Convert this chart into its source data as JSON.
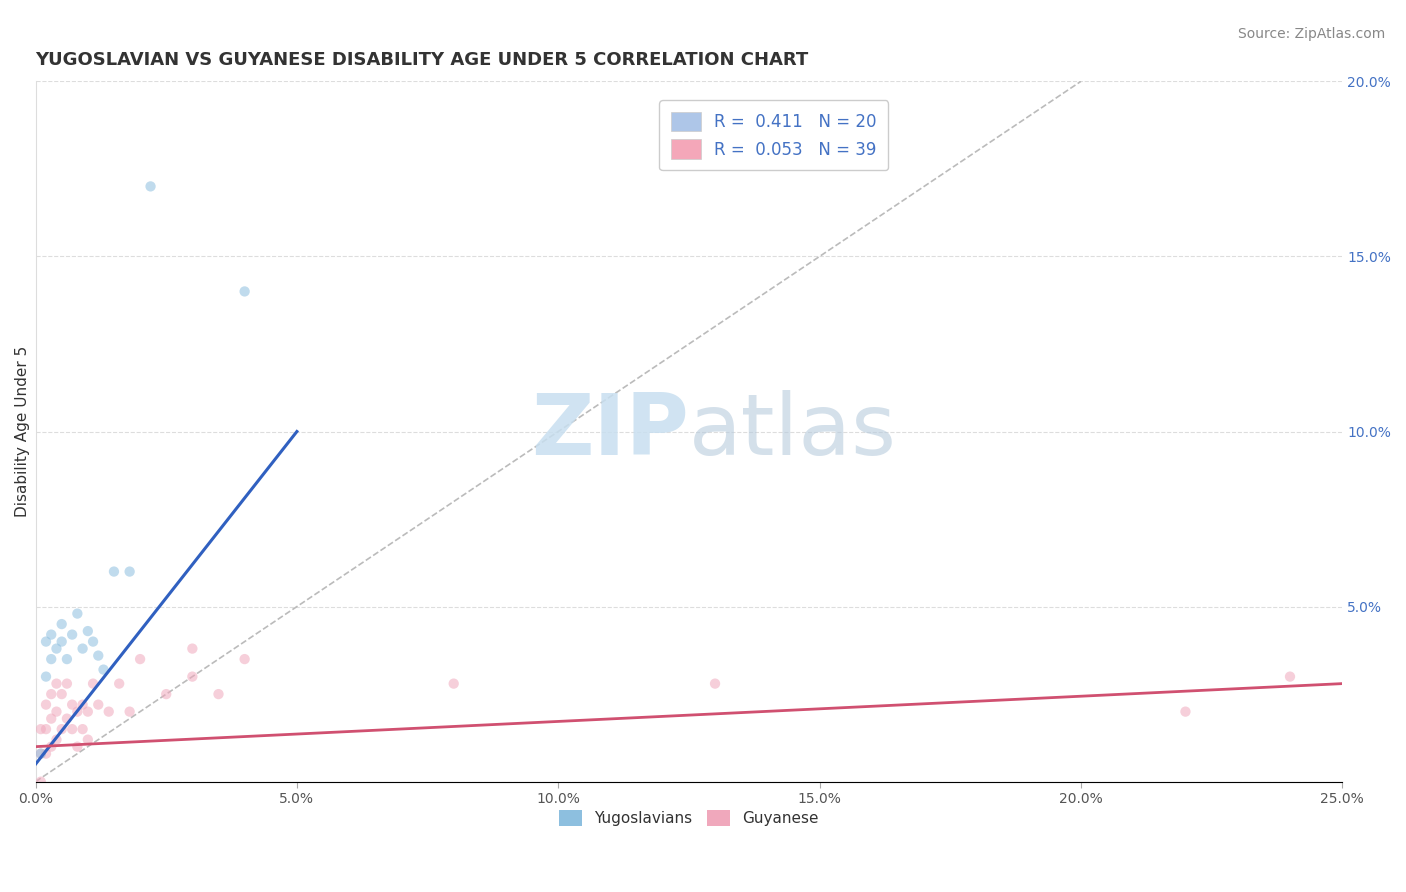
{
  "title": "YUGOSLAVIAN VS GUYANESE DISABILITY AGE UNDER 5 CORRELATION CHART",
  "source": "Source: ZipAtlas.com",
  "ylabel": "Disability Age Under 5",
  "xlim": [
    0.0,
    0.25
  ],
  "ylim": [
    0.0,
    0.2
  ],
  "xticks": [
    0.0,
    0.05,
    0.1,
    0.15,
    0.2,
    0.25
  ],
  "xticklabels": [
    "0.0%",
    "5.0%",
    "10.0%",
    "15.0%",
    "20.0%",
    "25.0%"
  ],
  "yticks": [
    0.0,
    0.05,
    0.1,
    0.15,
    0.2
  ],
  "yticklabels_right": [
    "",
    "5.0%",
    "10.0%",
    "15.0%",
    "20.0%"
  ],
  "watermark_top": "ZIP",
  "watermark_bottom": "atlas",
  "blue_scatter_x": [
    0.001,
    0.002,
    0.002,
    0.003,
    0.003,
    0.004,
    0.005,
    0.005,
    0.006,
    0.007,
    0.008,
    0.009,
    0.01,
    0.011,
    0.012,
    0.013,
    0.015,
    0.018,
    0.022,
    0.04
  ],
  "blue_scatter_y": [
    0.008,
    0.03,
    0.04,
    0.035,
    0.042,
    0.038,
    0.04,
    0.045,
    0.035,
    0.042,
    0.048,
    0.038,
    0.043,
    0.04,
    0.036,
    0.032,
    0.06,
    0.06,
    0.17,
    0.14
  ],
  "pink_scatter_x": [
    0.001,
    0.001,
    0.001,
    0.002,
    0.002,
    0.002,
    0.003,
    0.003,
    0.003,
    0.004,
    0.004,
    0.004,
    0.005,
    0.005,
    0.006,
    0.006,
    0.007,
    0.007,
    0.008,
    0.008,
    0.009,
    0.009,
    0.01,
    0.01,
    0.011,
    0.012,
    0.014,
    0.016,
    0.018,
    0.02,
    0.025,
    0.03,
    0.03,
    0.035,
    0.04,
    0.08,
    0.13,
    0.22,
    0.24
  ],
  "pink_scatter_y": [
    0.0,
    0.008,
    0.015,
    0.008,
    0.015,
    0.022,
    0.01,
    0.018,
    0.025,
    0.012,
    0.02,
    0.028,
    0.015,
    0.025,
    0.018,
    0.028,
    0.015,
    0.022,
    0.01,
    0.02,
    0.015,
    0.022,
    0.012,
    0.02,
    0.028,
    0.022,
    0.02,
    0.028,
    0.02,
    0.035,
    0.025,
    0.03,
    0.038,
    0.025,
    0.035,
    0.028,
    0.028,
    0.02,
    0.03
  ],
  "blue_line_x": [
    0.0,
    0.05
  ],
  "blue_line_y": [
    0.005,
    0.1
  ],
  "pink_line_x": [
    0.0,
    0.25
  ],
  "pink_line_y": [
    0.01,
    0.028
  ],
  "diagonal_line_x": [
    0.0,
    0.2
  ],
  "diagonal_line_y": [
    0.0,
    0.2
  ],
  "scatter_size": 55,
  "scatter_alpha": 0.55,
  "blue_color": "#8dbfdf",
  "pink_color": "#f0a8bc",
  "blue_line_color": "#3060C0",
  "pink_line_color": "#D05070",
  "diagonal_color": "#BBBBBB",
  "background_color": "#FFFFFF",
  "grid_color": "#DDDDDD",
  "title_fontsize": 13,
  "axis_label_fontsize": 11,
  "tick_fontsize": 10,
  "source_fontsize": 10,
  "legend1_label1": "R =  0.411   N = 20",
  "legend1_label2": "R =  0.053   N = 39",
  "legend1_color1": "#aec6e8",
  "legend1_color2": "#f4a7b9",
  "legend2_label1": "Yugoslavians",
  "legend2_label2": "Guyanese"
}
